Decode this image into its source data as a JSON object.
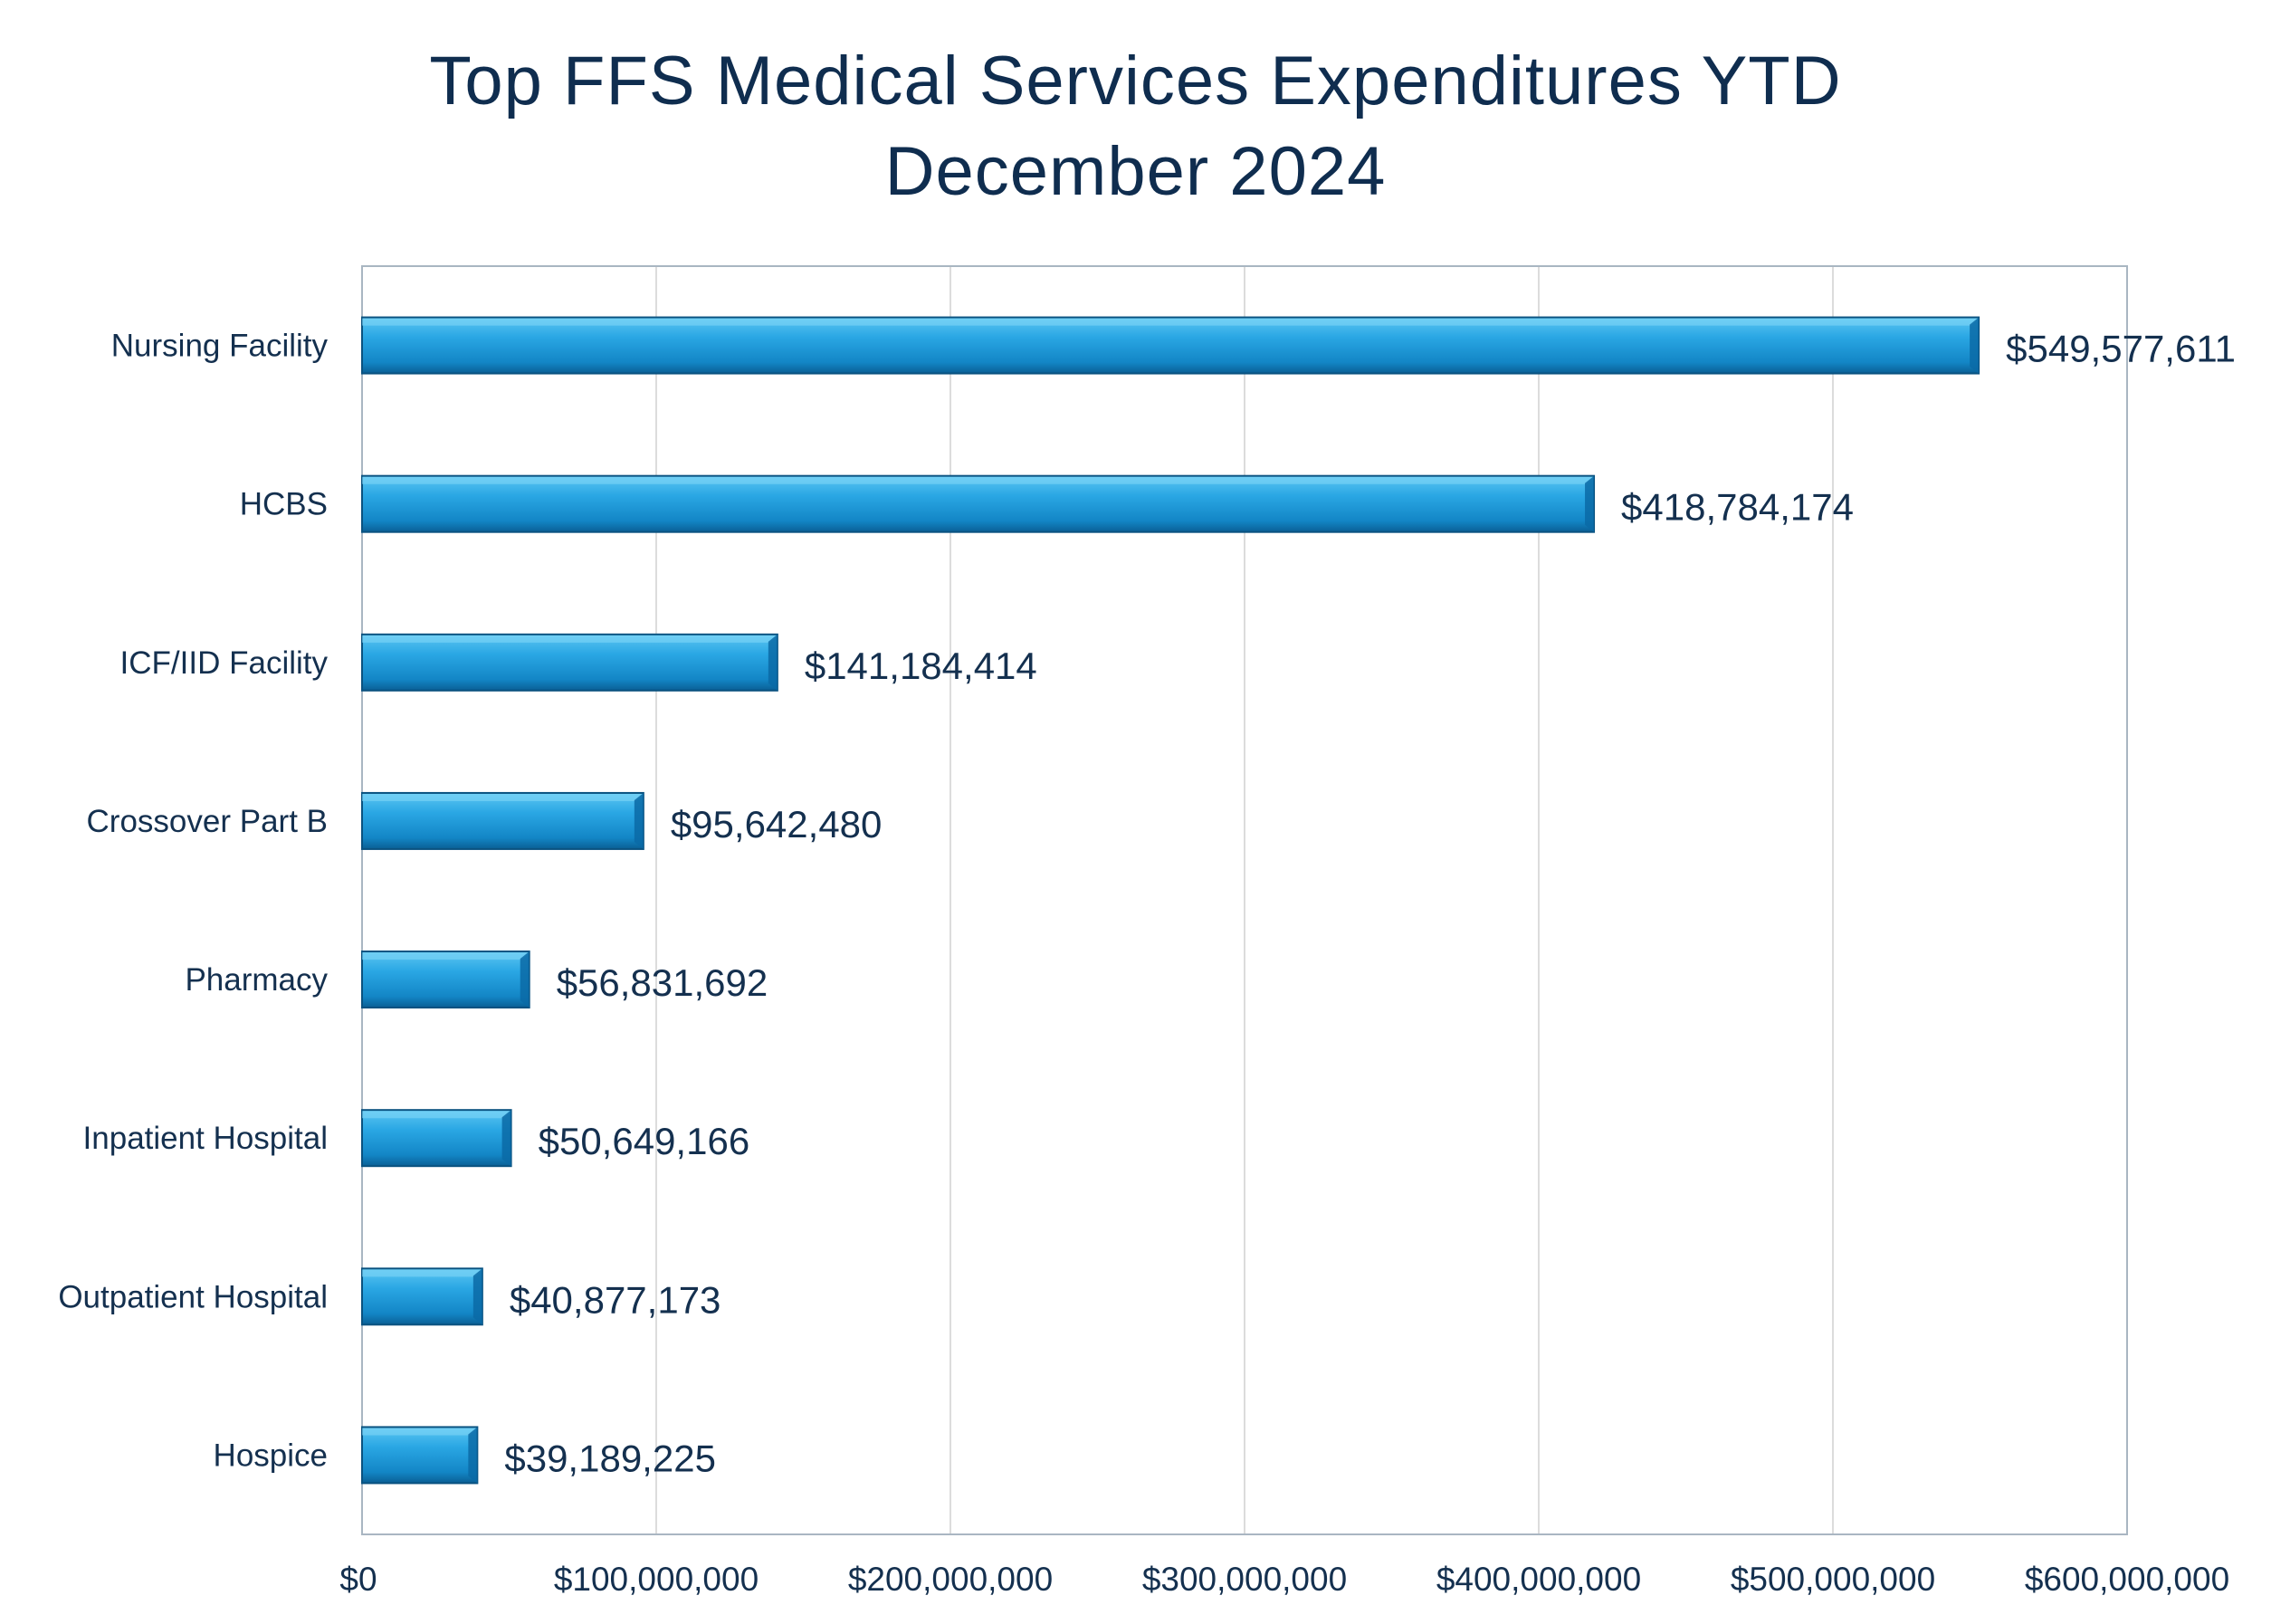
{
  "chart_data": {
    "type": "bar",
    "orientation": "horizontal",
    "title_lines": [
      "Top FFS Medical Services Expenditures YTD",
      "December 2024"
    ],
    "categories": [
      "Nursing Facility",
      "HCBS",
      "ICF/IID Facility",
      "Crossover Part B",
      "Pharmacy",
      "Inpatient Hospital",
      "Outpatient Hospital",
      "Hospice"
    ],
    "values": [
      549577611,
      418784174,
      141184414,
      95642480,
      56831692,
      50649166,
      40877173,
      39189225
    ],
    "data_labels": [
      "$549,577,611",
      "$418,784,174",
      "$141,184,414",
      "$95,642,480",
      "$56,831,692",
      "$50,649,166",
      "$40,877,173",
      "$39,189,225"
    ],
    "xlim": [
      0,
      600000000
    ],
    "x_ticks": [
      0,
      100000000,
      200000000,
      300000000,
      400000000,
      500000000,
      600000000
    ],
    "x_tick_labels": [
      "$0",
      "$100,000,000",
      "$200,000,000",
      "$300,000,000",
      "$400,000,000",
      "$500,000,000",
      "$600,000,000"
    ],
    "xlabel": "",
    "ylabel": "",
    "grid": "vertical",
    "legend": "none",
    "colors": {
      "bar": "#1591d4",
      "bar_light": "#5cc6f2",
      "bar_dark": "#0a5f95",
      "text": "#14304f",
      "grid": "#dcdcdc",
      "frame": "#a9b6c2"
    }
  }
}
